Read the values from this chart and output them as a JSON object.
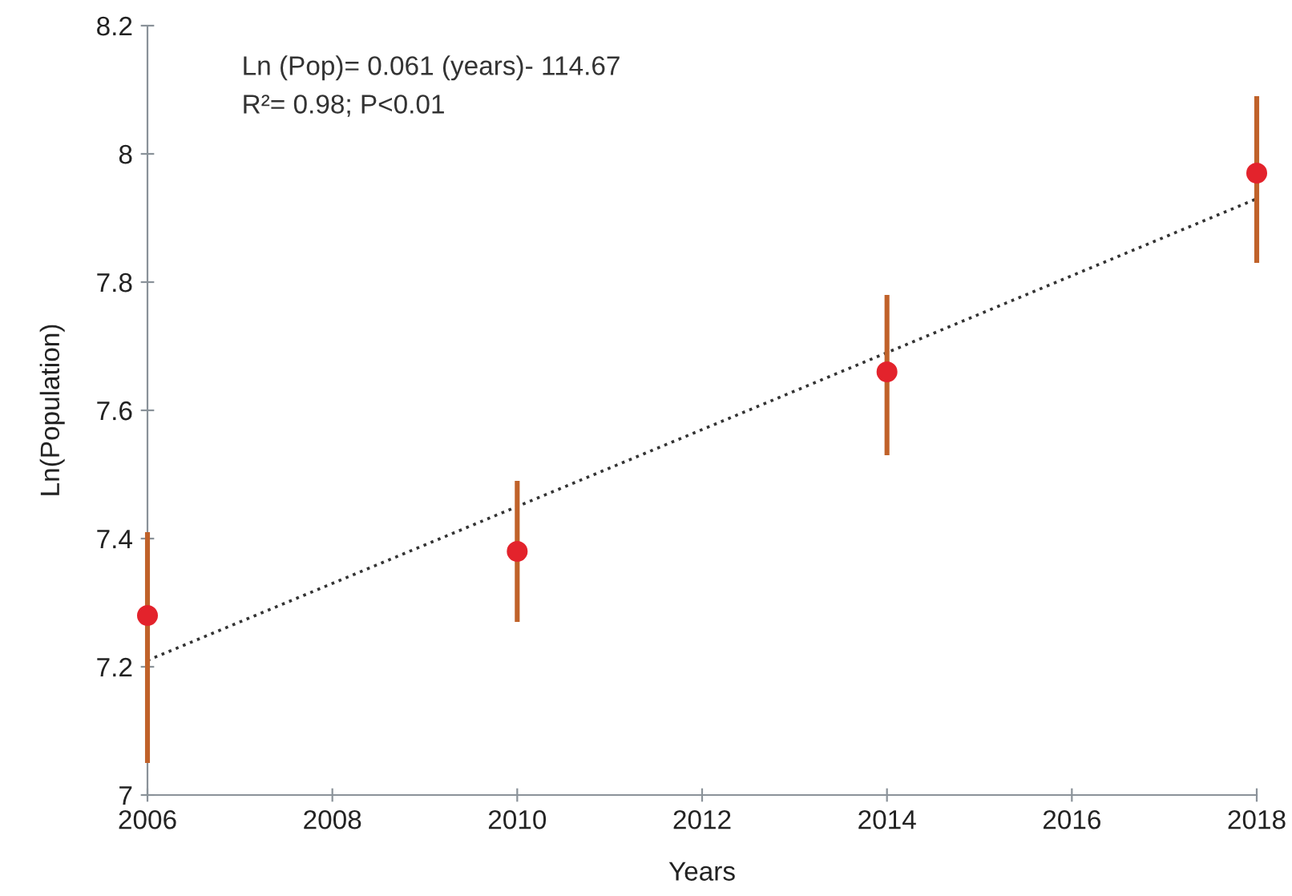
{
  "chart_data": {
    "type": "scatter",
    "xlabel": "Years",
    "ylabel": "Ln(Population)",
    "annotations": [
      "Ln (Pop)= 0.061 (years)- 114.67",
      "R²= 0.98; P<0.01"
    ],
    "series": [
      {
        "type": "line",
        "color": "#333333",
        "line_style": "dotted",
        "marker": "none",
        "x": [
          2006,
          2018
        ],
        "values": [
          7.21,
          7.93
        ]
      },
      {
        "color": "#e3232c",
        "marker": "circle",
        "x": [
          2006,
          2010,
          2014,
          2018
        ],
        "values": [
          7.28,
          7.38,
          7.66,
          7.97
        ],
        "errors": [
          [
            7.05,
            7.41
          ],
          [
            7.27,
            7.49
          ],
          [
            7.53,
            7.78
          ],
          [
            7.83,
            8.09
          ]
        ]
      }
    ],
    "xlim": [
      2006,
      2018
    ],
    "xticks": [
      2006,
      2008,
      2010,
      2012,
      2014,
      2016,
      2018
    ],
    "ylim": [
      7,
      8.2
    ],
    "yticks": [
      7,
      7.2,
      7.4,
      7.6,
      7.8,
      8,
      8.2
    ],
    "grid": false,
    "legend": false
  }
}
